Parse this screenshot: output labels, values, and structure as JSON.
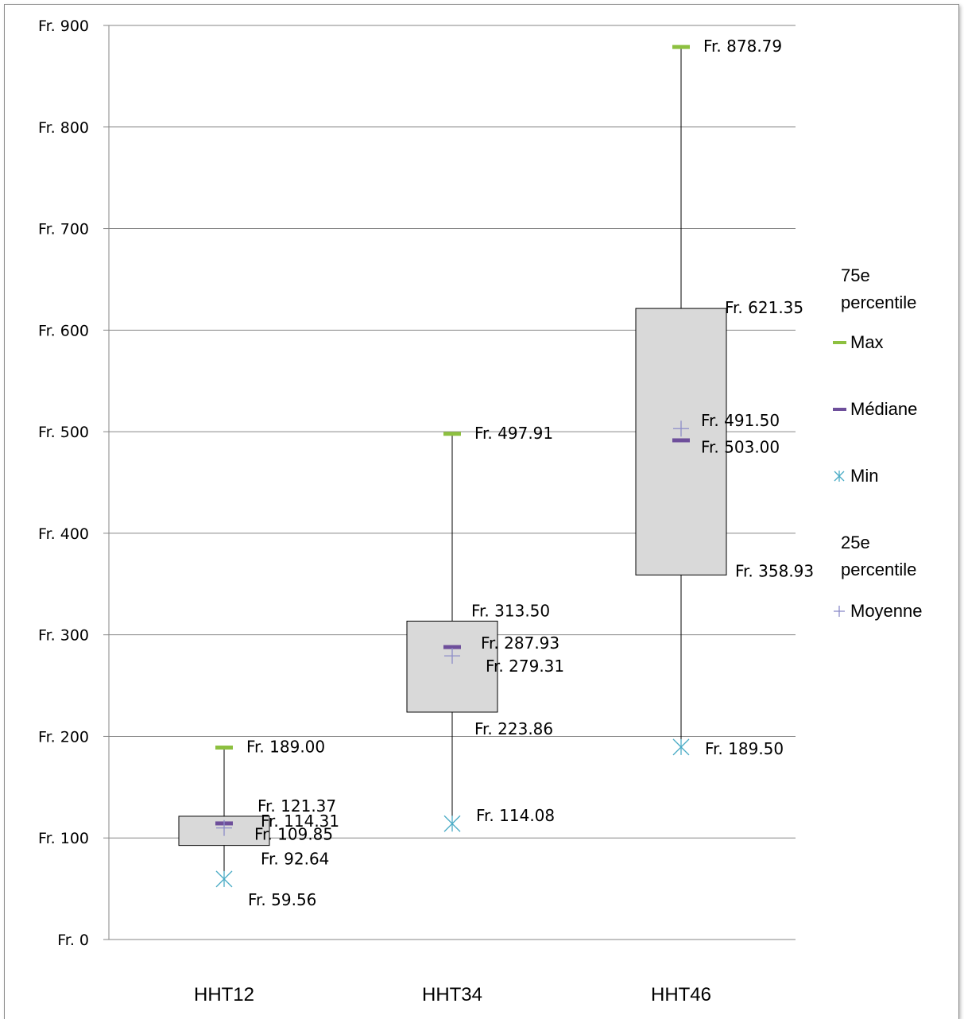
{
  "chart_data": {
    "type": "box",
    "title": "",
    "xlabel": "",
    "ylabel": "",
    "ylim": [
      0,
      900
    ],
    "y_ticks": [
      "Fr. 0",
      "Fr. 100",
      "Fr. 200",
      "Fr. 300",
      "Fr. 400",
      "Fr. 500",
      "Fr. 600",
      "Fr. 700",
      "Fr. 800",
      "Fr. 900"
    ],
    "y_tick_values": [
      0,
      100,
      200,
      300,
      400,
      500,
      600,
      700,
      800,
      900
    ],
    "grid": true,
    "legend_position": "right",
    "categories": [
      "HHT12",
      "HHT34",
      "HHT46"
    ],
    "series": [
      {
        "name": "75e percentile",
        "values": [
          121.37,
          313.5,
          621.35
        ],
        "labels": [
          "Fr. 121.37",
          "Fr. 313.50",
          "Fr. 621.35"
        ]
      },
      {
        "name": "Max",
        "values": [
          189.0,
          497.91,
          878.79
        ],
        "labels": [
          "Fr. 189.00",
          "Fr. 497.91",
          "Fr. 878.79"
        ]
      },
      {
        "name": "Médiane",
        "values": [
          114.31,
          287.93,
          491.5
        ],
        "labels": [
          "Fr. 114.31",
          "Fr. 287.93",
          "Fr. 491.50"
        ]
      },
      {
        "name": "Min",
        "values": [
          59.56,
          114.08,
          189.5
        ],
        "labels": [
          "Fr. 59.56",
          "Fr. 114.08",
          "Fr. 189.50"
        ]
      },
      {
        "name": "25e percentile",
        "values": [
          92.64,
          223.86,
          358.93
        ],
        "labels": [
          "Fr. 92.64",
          "Fr. 223.86",
          "Fr. 358.93"
        ]
      },
      {
        "name": "Moyenne",
        "values": [
          109.85,
          279.31,
          503.0
        ],
        "labels": [
          "Fr. 109.85",
          "Fr. 279.31",
          "Fr. 503.00"
        ]
      }
    ],
    "colors": {
      "max": "#8DC040",
      "median": "#6E4F9B",
      "min": "#4BACC6",
      "mean": "#8C8CC8",
      "box_fill": "#D9D9D9",
      "gridline": "#868686"
    },
    "legend": [
      {
        "key": "q3",
        "label": "75e percentile",
        "marker": "none"
      },
      {
        "key": "max",
        "label": "Max",
        "marker": "green-dash"
      },
      {
        "key": "median",
        "label": "Médiane",
        "marker": "purple-dash"
      },
      {
        "key": "min",
        "label": "Min",
        "marker": "blue-asterisk"
      },
      {
        "key": "q1",
        "label": "25e percentile",
        "marker": "none"
      },
      {
        "key": "mean",
        "label": "Moyenne",
        "marker": "plus"
      }
    ]
  }
}
